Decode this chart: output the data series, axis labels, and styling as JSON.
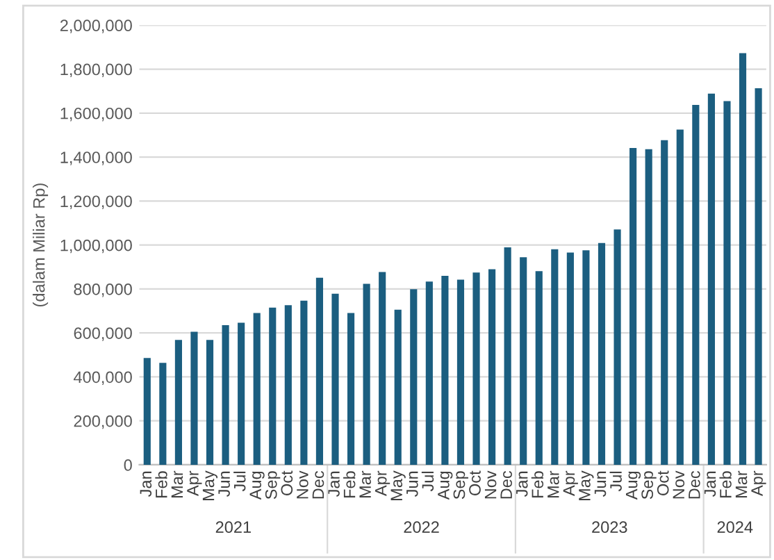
{
  "chart_data": {
    "type": "bar",
    "ylabel": "(dalam Miliar Rp)",
    "categories": [
      "Jan",
      "Feb",
      "Mar",
      "Apr",
      "May",
      "Jun",
      "Jul",
      "Aug",
      "Sep",
      "Oct",
      "Nov",
      "Dec",
      "Jan",
      "Feb",
      "Mar",
      "Apr",
      "May",
      "Jun",
      "Jul",
      "Aug",
      "Sep",
      "Oct",
      "Nov",
      "Dec",
      "Jan",
      "Feb",
      "Mar",
      "Apr",
      "May",
      "Jun",
      "Jul",
      "Aug",
      "Sep",
      "Oct",
      "Nov",
      "Dec",
      "Jan",
      "Feb",
      "Mar",
      "Apr"
    ],
    "values": [
      486000,
      464000,
      568000,
      605000,
      568000,
      635000,
      646000,
      691000,
      715000,
      726000,
      747000,
      851000,
      778000,
      691000,
      823000,
      877000,
      706000,
      799000,
      834000,
      860000,
      842000,
      875000,
      890000,
      989000,
      944000,
      881000,
      981000,
      966000,
      976000,
      1009000,
      1071000,
      1441000,
      1436000,
      1477000,
      1525000,
      1637000,
      1689000,
      1655000,
      1873000,
      1713000
    ],
    "color": "#1b5e80",
    "ylim": [
      0,
      2000000
    ],
    "yticks": [
      0,
      {
        "value": 200000,
        "label": "200,000"
      },
      {
        "value": 400000,
        "label": "400,000"
      },
      {
        "value": 600000,
        "label": "600,000"
      },
      {
        "value": 800000,
        "label": "800,000"
      },
      {
        "value": 1000000,
        "label": "1,000,000"
      },
      {
        "value": 1200000,
        "label": "1,200,000"
      },
      {
        "value": 1400000,
        "label": "1,400,000"
      },
      {
        "value": 1600000,
        "label": "1,600,000"
      },
      {
        "value": 1800000,
        "label": "1,800,000"
      },
      {
        "value": 2000000,
        "label": "2,000,000"
      }
    ],
    "annotations": [
      "2021",
      "2022",
      "2023",
      "2024"
    ],
    "grid": "y"
  }
}
